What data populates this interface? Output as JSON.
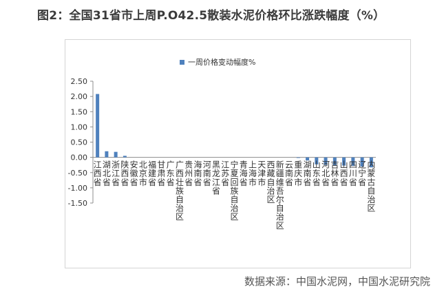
{
  "title": "图2：全国31省市上周P.O42.5散装水泥价格环比涨跌幅度（%）",
  "source": "数据来源：中国水泥网，中国水泥研究院",
  "colors": {
    "bar": "#4f81bd",
    "axis": "#8c8c8c",
    "grid": "#e0e0e0",
    "text": "#333333"
  },
  "chart_data": {
    "type": "bar",
    "title": "",
    "xlabel": "",
    "ylabel": "",
    "ylim": [
      -1.5,
      2.5
    ],
    "yticks": [
      "2.50",
      "2.00",
      "1.50",
      "1.00",
      "0.50",
      "0.00",
      "-0.50",
      "-1.00",
      "-1.50"
    ],
    "grid": false,
    "legend_position": "top",
    "categories": [
      "江西省",
      "湖北省",
      "浙江省",
      "陕西省",
      "安徽省",
      "北京市",
      "福建省",
      "甘肃省",
      "广东省",
      "广西壮族自治区",
      "贵州省",
      "海南省",
      "河南省",
      "黑龙江省",
      "江苏省",
      "宁夏回族自治区",
      "青海省",
      "上海市",
      "天津市",
      "西藏自治区",
      "新疆维吾尔自治区",
      "云南省",
      "重庆市",
      "湖南省",
      "山东省",
      "河北省",
      "吉林省",
      "山西省",
      "四川省",
      "辽宁省",
      "内蒙古自治区"
    ],
    "series": [
      {
        "name": "一周价格变动幅度%",
        "values": [
          2.08,
          0.2,
          0.18,
          0.05,
          0,
          0,
          0,
          0,
          0,
          0,
          0,
          0,
          0,
          0,
          0,
          0,
          0,
          0,
          0,
          0,
          0,
          0,
          -0.02,
          -0.1,
          -0.23,
          -0.25,
          -0.26,
          -0.27,
          -0.28,
          -0.3,
          -0.33
        ]
      }
    ]
  }
}
